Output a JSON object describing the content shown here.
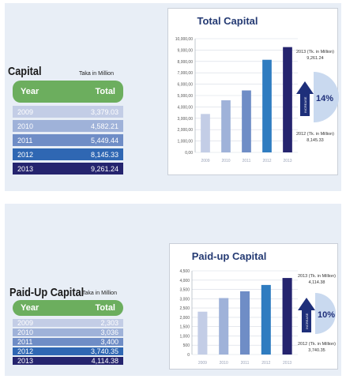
{
  "capital": {
    "title": "Capital",
    "unit": "Taka in Million",
    "col_year": "Year",
    "col_total": "Total",
    "rows": [
      {
        "year": "2009",
        "total": "3,379.03"
      },
      {
        "year": "2010",
        "total": "4,582.21"
      },
      {
        "year": "2011",
        "total": "5,449.44"
      },
      {
        "year": "2012",
        "total": "8,145.33"
      },
      {
        "year": "2013",
        "total": "9,261.24"
      }
    ]
  },
  "paidup": {
    "title": "Paid-Up Capital",
    "unit": "Taka in Million",
    "col_year": "Year",
    "col_total": "Total",
    "rows": [
      {
        "year": "2009",
        "total": "2,303"
      },
      {
        "year": "2010",
        "total": "3,036"
      },
      {
        "year": "2011",
        "total": "3,400"
      },
      {
        "year": "2012",
        "total": "3,740.35"
      },
      {
        "year": "2013",
        "total": "4,114.38"
      }
    ]
  },
  "row_colors": [
    "#c3cde6",
    "#9fb2d9",
    "#6f8dc6",
    "#2f67b3",
    "#25246e"
  ],
  "chart_data": [
    {
      "type": "bar",
      "title": "Total Capital",
      "categories": [
        "2009",
        "2010",
        "2011",
        "2012",
        "2013"
      ],
      "values": [
        3379.03,
        4582.21,
        5449.44,
        8145.33,
        9261.24
      ],
      "ylim": [
        0,
        10000
      ],
      "yticks": [
        "0,00",
        "1,000,00",
        "2,000,00",
        "3,000,00",
        "4,000,00",
        "5,000,00",
        "6,000,00",
        "7,000,00",
        "8,000,00",
        "9,000,00",
        "10,000,00"
      ],
      "grid": true,
      "bar_colors": [
        "#c3cde6",
        "#9fb2d9",
        "#6f8dc6",
        "#2f7cc0",
        "#25246e"
      ],
      "growth": {
        "percent": "14%",
        "badge": "INCREASE",
        "top_label": "2013 (Tk. in Million)",
        "top_value": "9,261.24",
        "bottom_label": "2012 (Tk. in Million)",
        "bottom_value": "8,145.33"
      }
    },
    {
      "type": "bar",
      "title": "Paid-up Capital",
      "categories": [
        "2009",
        "2010",
        "2011",
        "2012",
        "2013"
      ],
      "values": [
        2303,
        3036,
        3400,
        3740.35,
        4114.38
      ],
      "ylim": [
        0,
        4500
      ],
      "yticks": [
        "0",
        "500",
        "1,000",
        "1,500",
        "2,000",
        "2,500",
        "3,000",
        "3,500",
        "4,000",
        "4,500"
      ],
      "grid": true,
      "bar_colors": [
        "#c3cde6",
        "#9fb2d9",
        "#6f8dc6",
        "#2f7cc0",
        "#25246e"
      ],
      "growth": {
        "percent": "10%",
        "badge": "INCREASE",
        "top_label": "2013 (Tk. in Million)",
        "top_value": "4,114.38",
        "bottom_label": "2012 (Tk. in Million)",
        "bottom_value": "3,740.35"
      }
    }
  ]
}
